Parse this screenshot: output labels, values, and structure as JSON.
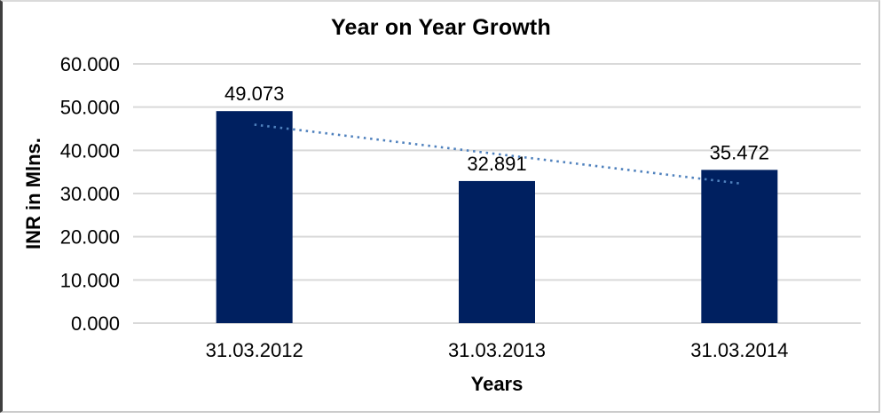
{
  "chart_data": {
    "type": "bar",
    "title": "Year on Year Growth",
    "xlabel": "Years",
    "ylabel": "INR in Mlns.",
    "categories": [
      "31.03.2012",
      "31.03.2013",
      "31.03.2014"
    ],
    "values": [
      49.073,
      32.891,
      35.472
    ],
    "data_labels": [
      "49.073",
      "32.891",
      "35.472"
    ],
    "y_ticks": [
      "0.000",
      "10.000",
      "20.000",
      "30.000",
      "40.000",
      "50.000",
      "60.000"
    ],
    "ylim": [
      0,
      60
    ],
    "grid": true,
    "legend": false,
    "bar_color": "#002060",
    "gridline_color": "#d9d9d9",
    "text_color": "#000000",
    "trendline": {
      "type": "linear",
      "style": "dotted",
      "color": "#4f81bd"
    }
  }
}
